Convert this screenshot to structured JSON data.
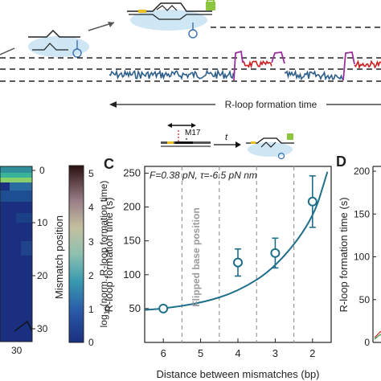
{
  "top_panel": {
    "rloop_caption": "R-loop formation time"
  },
  "heatmap_panel": {
    "right_axis_label": "Mismatch position",
    "right_ticks": [
      "0",
      "10",
      "20",
      "30"
    ],
    "colorbar_label": "log10(norm. R-loop formation time)",
    "colorbar_ticks": [
      "5",
      "4",
      "3",
      "2",
      "1",
      "0"
    ],
    "bottom_tick": "30"
  },
  "panel_c": {
    "letter": "C",
    "mismatch_label": "M17",
    "time_symbol": "t",
    "annotation": "F=0.38 pN, τ=-6.5 pN nm",
    "flipped_label": "Flipped base position",
    "xlabel": "Distance between mismatches (bp)",
    "ylabel": "R-loop formation time (s)",
    "xticks": [
      "6",
      "5",
      "4",
      "3",
      "2"
    ],
    "yticks": [
      "50",
      "100",
      "150",
      "200",
      "250"
    ]
  },
  "panel_d": {
    "letter": "D",
    "ylabel": "R-loop formation time (s)",
    "yticks": [
      "0",
      "50",
      "100",
      "150",
      "200"
    ]
  },
  "chart_data": {
    "type": "scatter",
    "x_axis_reversed": true,
    "xlabel": "Distance between mismatches (bp)",
    "ylabel": "R-loop formation time (s)",
    "xlim": [
      6.5,
      1.5
    ],
    "ylim": [
      0,
      260
    ],
    "points": [
      {
        "x": 6,
        "y": 50,
        "err": 3
      },
      {
        "x": 4,
        "y": 118,
        "err": 20
      },
      {
        "x": 3,
        "y": 132,
        "err": 22
      },
      {
        "x": 2,
        "y": 208,
        "err": 38
      }
    ],
    "model_curve": [
      {
        "x": 6.5,
        "y": 48
      },
      {
        "x": 6,
        "y": 50
      },
      {
        "x": 5,
        "y": 58
      },
      {
        "x": 4,
        "y": 75
      },
      {
        "x": 3,
        "y": 110
      },
      {
        "x": 2,
        "y": 180
      },
      {
        "x": 1.6,
        "y": 252
      }
    ],
    "dashed_x": [
      5.5,
      4.5,
      3.5,
      2.5
    ],
    "colors": {
      "marker": "#1f6f8b",
      "curve": "#1f6f8b",
      "trace_blue": "#2e5f8a",
      "trace_red": "#cc1f1f",
      "trace_purple": "#9b2fa0"
    }
  }
}
